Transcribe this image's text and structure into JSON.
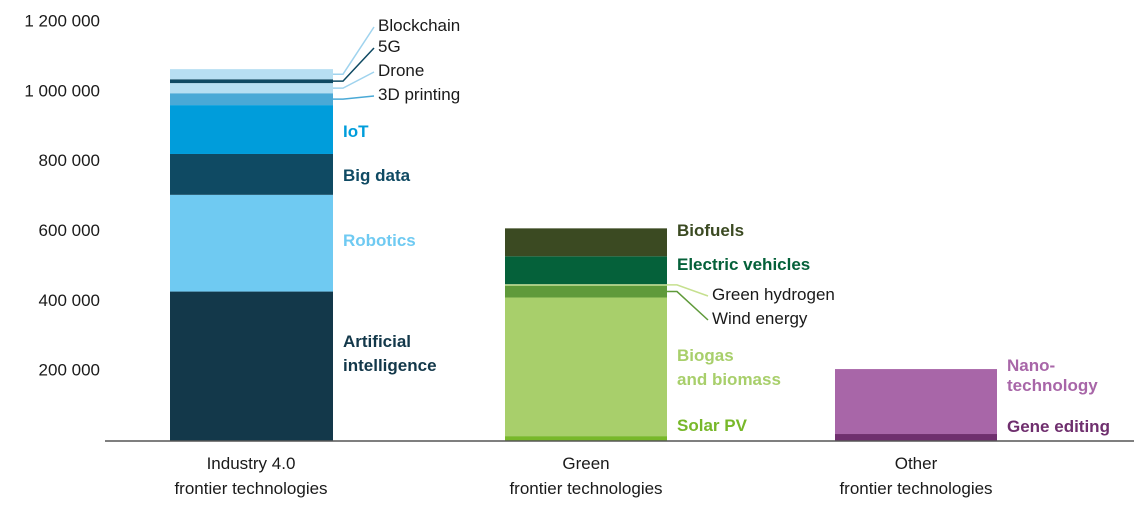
{
  "chart_data": {
    "type": "stacked_bar",
    "categories": [
      "Industry 4.0\nfrontier technologies",
      "Green\nfrontier technologies",
      "Other\nfrontier technologies"
    ],
    "ylim": [
      0,
      1200000
    ],
    "yticks": [
      {
        "value": 200000,
        "label": "200 000"
      },
      {
        "value": 400000,
        "label": "400 000"
      },
      {
        "value": 600000,
        "label": "600 000"
      },
      {
        "value": 800000,
        "label": "800 000"
      },
      {
        "value": 1000000,
        "label": "1 000 000"
      },
      {
        "value": 1200000,
        "label": "1 200 000"
      }
    ],
    "groups": [
      {
        "segments": [
          {
            "name": "Artificial\nintelligence",
            "color": "#13384a",
            "value": 428000
          },
          {
            "name": "Robotics",
            "color": "#6fcaf2",
            "value": 277000
          },
          {
            "name": "Big data",
            "color": "#0f4a63",
            "value": 117000
          },
          {
            "name": "IoT",
            "color": "#009ddb",
            "value": 140000
          },
          {
            "name": "3D printing",
            "color": "#4aa9d6",
            "value": 34000
          },
          {
            "name": "Drone",
            "color": "#b7dff2",
            "value": 29000
          },
          {
            "name": "5G",
            "color": "#0f4a63",
            "value": 11000
          },
          {
            "name": "Blockchain",
            "color": "#b7dff2",
            "value": 29000
          }
        ]
      },
      {
        "segments": [
          {
            "name": "Solar PV",
            "color": "#78b82a",
            "value": 14000
          },
          {
            "name": "Biogas\nand biomass",
            "color": "#a8cf6b",
            "value": 397000
          },
          {
            "name": "Wind energy",
            "color": "#5f9a3a",
            "value": 34000
          },
          {
            "name": "Green hydrogen",
            "color": "#c6e08f",
            "value": 4000
          },
          {
            "name": "Electric vehicles",
            "color": "#05613a",
            "value": 80000
          },
          {
            "name": "Biofuels",
            "color": "#3b4a22",
            "value": 80000
          }
        ]
      },
      {
        "segments": [
          {
            "name": "Gene editing",
            "color": "#6f2f6e",
            "value": 20000
          },
          {
            "name": "Nano-\ntechnology",
            "color": "#a866a8",
            "value": 186000
          }
        ]
      }
    ]
  }
}
